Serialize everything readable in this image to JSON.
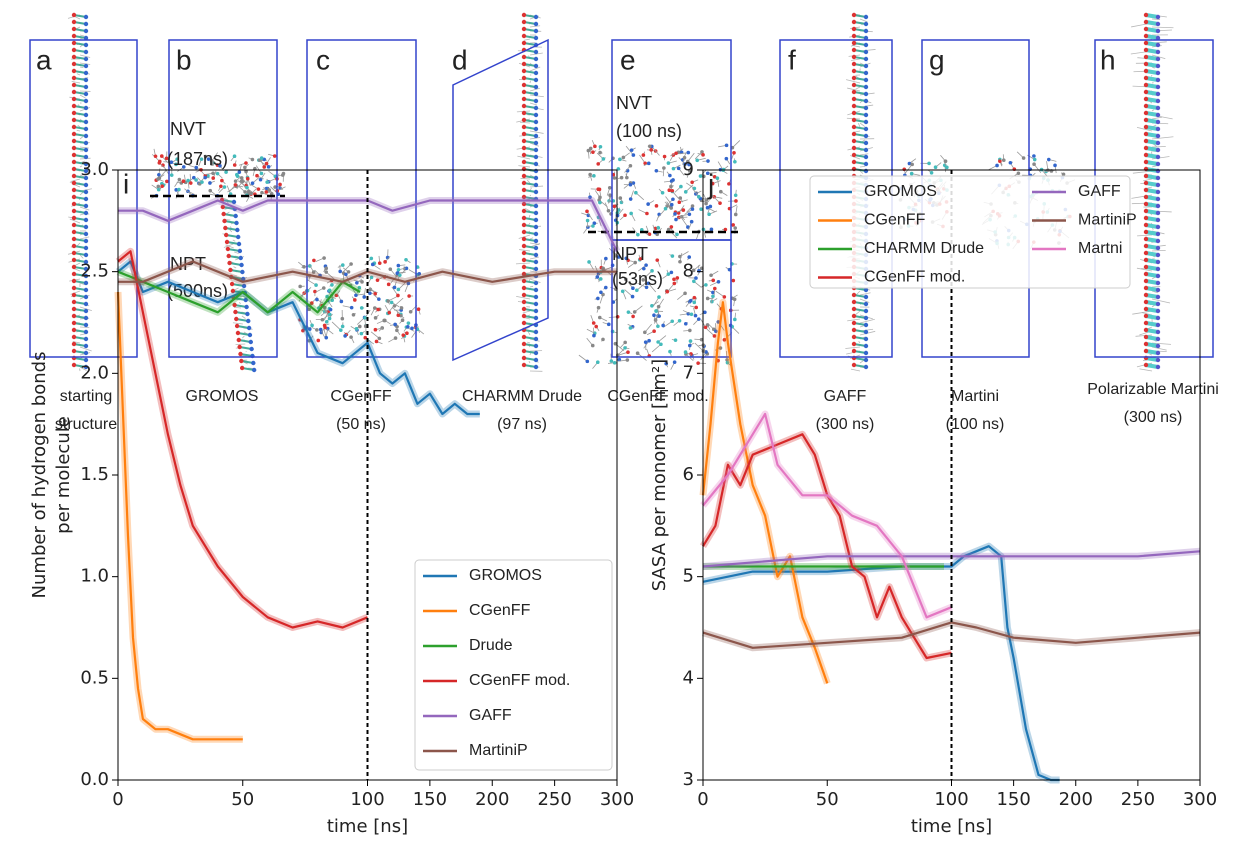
{
  "structures": {
    "panels": [
      {
        "label": "a",
        "caption": [
          "starting",
          "structure"
        ]
      },
      {
        "label": "b",
        "caption": [
          "GROMOS"
        ],
        "notes": [
          "NVT",
          "(187ns)",
          "NPT",
          "(500ns)"
        ]
      },
      {
        "label": "c",
        "caption": [
          "CGenFF",
          "(50 ns)"
        ]
      },
      {
        "label": "d",
        "caption": [
          "CHARMM Drude",
          "(97 ns)"
        ]
      },
      {
        "label": "e",
        "caption": [
          "CGenFF mod."
        ],
        "notes": [
          "NVT",
          "(100 ns)",
          "NPT",
          "(53ns)"
        ]
      },
      {
        "label": "f",
        "caption": [
          "GAFF",
          "(300 ns)"
        ]
      },
      {
        "label": "g",
        "caption": [
          "Martini",
          "(100 ns)"
        ]
      },
      {
        "label": "h",
        "caption": [
          "Polarizable Martini",
          "(300 ns)"
        ]
      }
    ]
  },
  "chart_data": [
    {
      "type": "line",
      "panel_label": "i",
      "xlabel": "time [ns]",
      "ylabel": [
        "Number of hydrogen bonds",
        "per molecule"
      ],
      "xlim": [
        0,
        300
      ],
      "xticks": [
        0,
        50,
        100,
        150,
        200,
        250,
        300
      ],
      "x_scale": "piecewise",
      "vline": 100,
      "ylim": [
        0,
        3
      ],
      "yticks": [
        {
          "value": 0,
          "label": "0.0"
        },
        {
          "value": 0.5,
          "label": "0.5"
        },
        {
          "value": 1,
          "label": "1.0"
        },
        {
          "value": 1.5,
          "label": "1.5"
        },
        {
          "value": 2,
          "label": "2.0"
        },
        {
          "value": 2.5,
          "label": "2.5"
        },
        {
          "value": 3,
          "label": "3.0"
        }
      ],
      "legend": "lower right",
      "legend_columns": 1,
      "series": [
        {
          "name": "GROMOS",
          "color": "#1f77b4",
          "x": [
            0,
            5,
            10,
            20,
            30,
            40,
            50,
            60,
            70,
            80,
            90,
            100,
            110,
            120,
            130,
            140,
            150,
            160,
            170,
            180,
            190
          ],
          "values": [
            2.5,
            2.55,
            2.4,
            2.45,
            2.4,
            2.35,
            2.4,
            2.3,
            2.35,
            2.1,
            2.05,
            2.15,
            2.0,
            1.95,
            2.0,
            1.85,
            1.9,
            1.8,
            1.85,
            1.8,
            1.8
          ]
        },
        {
          "name": "CGenFF",
          "color": "#ff7f0e",
          "x": [
            0,
            2,
            4,
            6,
            8,
            10,
            15,
            20,
            30,
            40,
            50
          ],
          "values": [
            2.4,
            1.8,
            1.2,
            0.7,
            0.45,
            0.3,
            0.25,
            0.25,
            0.2,
            0.2,
            0.2
          ]
        },
        {
          "name": "Drude",
          "color": "#2ca02c",
          "x": [
            0,
            10,
            20,
            30,
            40,
            50,
            60,
            70,
            80,
            90,
            97
          ],
          "values": [
            2.5,
            2.45,
            2.4,
            2.35,
            2.3,
            2.4,
            2.3,
            2.4,
            2.3,
            2.45,
            2.4
          ]
        },
        {
          "name": "CGenFF mod.",
          "color": "#d62728",
          "x": [
            0,
            5,
            10,
            15,
            20,
            25,
            30,
            40,
            50,
            60,
            70,
            80,
            90,
            100
          ],
          "values": [
            2.55,
            2.6,
            2.3,
            2.0,
            1.7,
            1.45,
            1.25,
            1.05,
            0.9,
            0.8,
            0.75,
            0.78,
            0.75,
            0.8
          ]
        },
        {
          "name": "GAFF",
          "color": "#9467bd",
          "x": [
            0,
            10,
            20,
            30,
            40,
            50,
            60,
            70,
            80,
            100,
            120,
            150,
            200,
            250,
            280,
            300
          ],
          "values": [
            2.8,
            2.8,
            2.75,
            2.8,
            2.85,
            2.8,
            2.85,
            2.85,
            2.85,
            2.85,
            2.8,
            2.85,
            2.85,
            2.85,
            2.85,
            2.6
          ]
        },
        {
          "name": "MartiniP",
          "color": "#8c564b",
          "x": [
            0,
            10,
            30,
            50,
            70,
            90,
            100,
            130,
            160,
            200,
            250,
            300
          ],
          "values": [
            2.45,
            2.45,
            2.55,
            2.45,
            2.5,
            2.45,
            2.5,
            2.45,
            2.5,
            2.45,
            2.5,
            2.5
          ]
        }
      ]
    },
    {
      "type": "line",
      "panel_label": "j",
      "xlabel": "time [ns]",
      "ylabel": [
        "SASA per monomer [nm²]"
      ],
      "xlim": [
        0,
        300
      ],
      "xticks": [
        0,
        50,
        100,
        150,
        200,
        250,
        300
      ],
      "x_scale": "piecewise",
      "vline": 100,
      "ylim": [
        3,
        9
      ],
      "yticks": [
        3,
        4,
        5,
        6,
        7,
        8,
        9
      ],
      "legend": "upper center",
      "legend_columns": 2,
      "series": [
        {
          "name": "GROMOS",
          "color": "#1f77b4",
          "x": [
            0,
            20,
            50,
            80,
            100,
            110,
            130,
            140,
            145,
            150,
            160,
            170,
            180,
            187
          ],
          "values": [
            4.95,
            5.05,
            5.05,
            5.1,
            5.1,
            5.2,
            5.3,
            5.2,
            4.5,
            4.2,
            3.5,
            3.05,
            3.0,
            3.0
          ]
        },
        {
          "name": "CGenFF",
          "color": "#ff7f0e",
          "x": [
            0,
            3,
            6,
            8,
            10,
            15,
            20,
            25,
            30,
            35,
            40,
            45,
            50
          ],
          "values": [
            5.8,
            6.5,
            7.3,
            7.7,
            7.3,
            6.5,
            5.9,
            5.6,
            5.0,
            5.2,
            4.6,
            4.3,
            3.95
          ]
        },
        {
          "name": "CHARMM Drude",
          "color": "#2ca02c",
          "x": [
            0,
            20,
            50,
            80,
            97
          ],
          "values": [
            5.1,
            5.1,
            5.1,
            5.1,
            5.1
          ]
        },
        {
          "name": "CGenFF mod.",
          "color": "#d62728",
          "x": [
            0,
            5,
            10,
            15,
            20,
            30,
            40,
            45,
            50,
            55,
            60,
            65,
            70,
            75,
            80,
            85,
            90,
            100
          ],
          "values": [
            5.3,
            5.5,
            6.1,
            5.9,
            6.2,
            6.3,
            6.4,
            6.2,
            5.8,
            5.6,
            5.1,
            5.0,
            4.6,
            4.9,
            4.6,
            4.4,
            4.2,
            4.25
          ]
        },
        {
          "name": "GAFF",
          "color": "#9467bd",
          "x": [
            0,
            50,
            100,
            150,
            200,
            250,
            300
          ],
          "values": [
            5.1,
            5.2,
            5.2,
            5.2,
            5.2,
            5.2,
            5.25
          ]
        },
        {
          "name": "MartiniP",
          "color": "#8c564b",
          "x": [
            0,
            20,
            50,
            80,
            100,
            120,
            150,
            200,
            250,
            300
          ],
          "values": [
            4.45,
            4.3,
            4.35,
            4.4,
            4.55,
            4.5,
            4.4,
            4.35,
            4.4,
            4.45
          ]
        },
        {
          "name": "Martni",
          "color": "#e377c2",
          "x": [
            0,
            10,
            20,
            25,
            30,
            40,
            50,
            60,
            70,
            80,
            90,
            100
          ],
          "values": [
            5.7,
            6.0,
            6.4,
            6.6,
            6.1,
            5.8,
            5.8,
            5.6,
            5.5,
            5.2,
            4.6,
            4.7
          ]
        }
      ]
    }
  ]
}
